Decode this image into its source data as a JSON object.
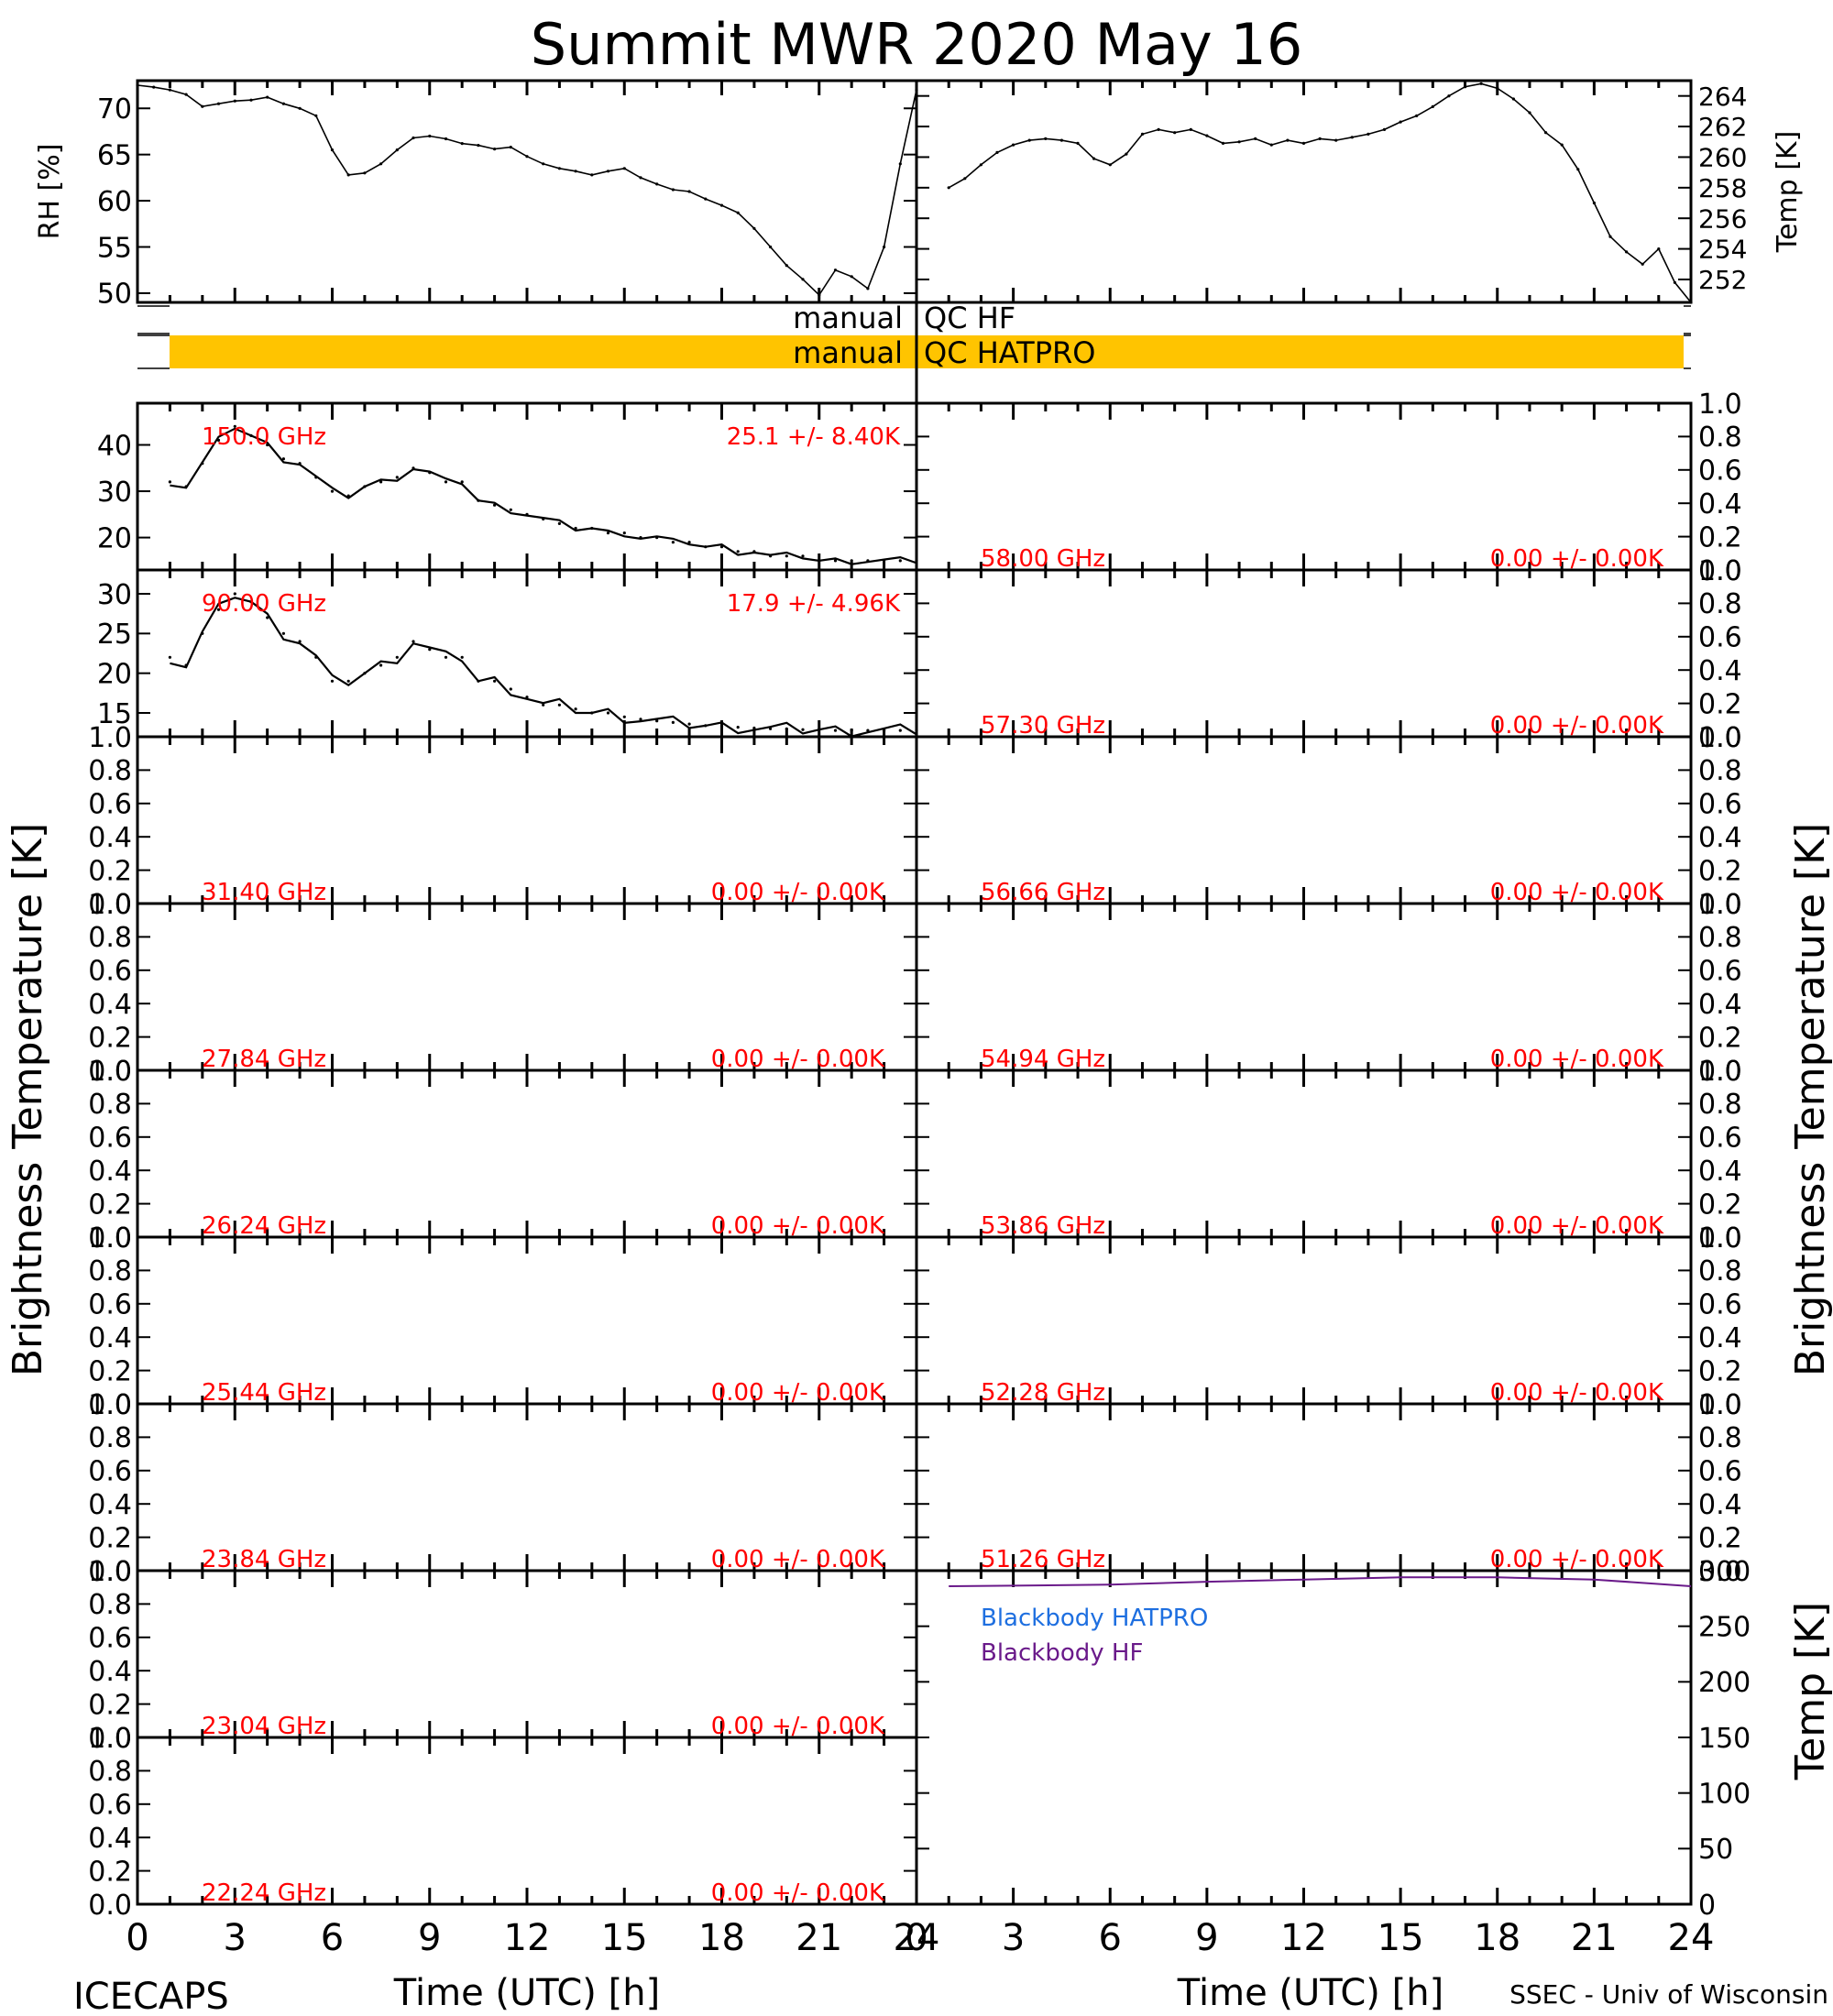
{
  "title": "Summit MWR 2020 May 16",
  "footer": {
    "left": "ICECAPS",
    "right": "SSEC - Univ of Wisconsin"
  },
  "colors": {
    "trace": "#000000",
    "label": "#ff0000",
    "qc_fill": "#ffc400",
    "bb_hatpro": "#1e6fe0",
    "bb_hf": "#6a1a8a"
  },
  "chart_data": [
    {
      "type": "line",
      "id": "rh",
      "ylabel": "RH [%]",
      "ylim": [
        49,
        73
      ],
      "yticks": [
        50,
        55,
        60,
        65,
        70
      ],
      "xlim": [
        0,
        24
      ],
      "x": [
        0.0,
        0.5,
        1.0,
        1.5,
        2.0,
        2.5,
        3.0,
        3.5,
        4.0,
        4.5,
        5.0,
        5.5,
        6.0,
        6.5,
        7.0,
        7.5,
        8.0,
        8.5,
        9.0,
        9.5,
        10.0,
        10.5,
        11.0,
        11.5,
        12.0,
        12.5,
        13.0,
        13.5,
        14.0,
        14.5,
        15.0,
        15.5,
        16.0,
        16.5,
        17.0,
        17.5,
        18.0,
        18.5,
        19.0,
        19.5,
        20.0,
        20.5,
        21.0,
        21.5,
        22.0,
        22.5,
        23.0,
        23.5,
        24.0
      ],
      "values": [
        72.5,
        72.3,
        72.0,
        71.5,
        70.2,
        70.5,
        70.8,
        70.9,
        71.2,
        70.5,
        70.0,
        69.2,
        65.5,
        62.8,
        63.0,
        64.0,
        65.5,
        66.8,
        67.0,
        66.7,
        66.2,
        66.0,
        65.6,
        65.8,
        64.8,
        64.0,
        63.5,
        63.2,
        62.8,
        63.2,
        63.5,
        62.5,
        61.8,
        61.2,
        61.0,
        60.2,
        59.5,
        58.7,
        57.0,
        55.0,
        53.0,
        51.5,
        49.8,
        52.5,
        51.8,
        50.5,
        55.0,
        64.0,
        72.0
      ]
    },
    {
      "type": "line",
      "id": "temp",
      "ylabel": "Temp [K]",
      "ylim": [
        250.5,
        265
      ],
      "yticks": [
        252,
        254,
        256,
        258,
        260,
        262,
        264
      ],
      "xlim": [
        0,
        24
      ],
      "x": [
        1.0,
        1.5,
        2.0,
        2.5,
        3.0,
        3.5,
        4.0,
        4.5,
        5.0,
        5.5,
        6.0,
        6.5,
        7.0,
        7.5,
        8.0,
        8.5,
        9.0,
        9.5,
        10.0,
        10.5,
        11.0,
        11.5,
        12.0,
        12.5,
        13.0,
        13.5,
        14.0,
        14.5,
        15.0,
        15.5,
        16.0,
        16.5,
        17.0,
        17.5,
        18.0,
        18.5,
        19.0,
        19.5,
        20.0,
        20.5,
        21.0,
        21.5,
        22.0,
        22.5,
        23.0,
        23.5,
        24.0
      ],
      "values": [
        258.0,
        258.6,
        259.5,
        260.3,
        260.8,
        261.1,
        261.2,
        261.1,
        260.9,
        259.9,
        259.5,
        260.2,
        261.5,
        261.8,
        261.6,
        261.8,
        261.4,
        260.9,
        261.0,
        261.2,
        260.8,
        261.1,
        260.9,
        261.2,
        261.1,
        261.3,
        261.5,
        261.8,
        262.3,
        262.7,
        263.3,
        264.0,
        264.6,
        264.8,
        264.5,
        263.8,
        262.9,
        261.6,
        260.8,
        259.2,
        257.0,
        254.8,
        253.8,
        253.0,
        254.0,
        251.8,
        250.5
      ]
    },
    {
      "type": "line",
      "id": "tb-150",
      "freq_label": "150.0 GHz",
      "stat_label": "25.1 +/-  8.40K",
      "ylim": [
        13,
        49
      ],
      "yticks": [
        20,
        30,
        40
      ],
      "xlim": [
        0,
        24
      ],
      "x": [
        1.0,
        1.5,
        2.0,
        2.5,
        3.0,
        3.5,
        4.0,
        4.5,
        5.0,
        5.5,
        6.0,
        6.5,
        7.0,
        7.5,
        8.0,
        8.5,
        9.0,
        9.5,
        10.0,
        10.5,
        11.0,
        11.5,
        12.0,
        12.5,
        13.0,
        13.5,
        14.0,
        14.5,
        15.0,
        15.5,
        16.0,
        16.5,
        17.0,
        17.5,
        18.0,
        18.5,
        19.0,
        19.5,
        20.0,
        20.5,
        21.0,
        21.5,
        22.0,
        22.5,
        23.0,
        23.5,
        24.0
      ],
      "values": [
        32,
        31,
        36,
        41,
        44,
        42,
        40,
        37,
        36,
        33,
        30,
        29,
        31,
        32,
        33,
        35,
        34,
        32,
        32,
        28,
        27,
        26,
        25,
        24,
        23,
        22,
        22,
        21,
        21,
        20,
        20,
        19,
        19,
        18,
        18,
        17,
        17,
        16,
        16,
        16,
        15,
        15,
        15,
        15,
        15,
        15,
        15
      ]
    },
    {
      "type": "line",
      "id": "tb-90",
      "freq_label": "90.00 GHz",
      "stat_label": "17.9 +/-  4.96K",
      "ylim": [
        12,
        33
      ],
      "yticks": [
        15,
        20,
        25,
        30
      ],
      "xlim": [
        0,
        24
      ],
      "x": [
        1.0,
        1.5,
        2.0,
        2.5,
        3.0,
        3.5,
        4.0,
        4.5,
        5.0,
        5.5,
        6.0,
        6.5,
        7.0,
        7.5,
        8.0,
        8.5,
        9.0,
        9.5,
        10.0,
        10.5,
        11.0,
        11.5,
        12.0,
        12.5,
        13.0,
        13.5,
        14.0,
        14.5,
        15.0,
        15.5,
        16.0,
        16.5,
        17.0,
        17.5,
        18.0,
        18.5,
        19.0,
        19.5,
        20.0,
        20.5,
        21.0,
        21.5,
        22.0,
        22.5,
        23.0,
        23.5,
        24.0
      ],
      "values": [
        22,
        21,
        25,
        28,
        30,
        29,
        27,
        25,
        24,
        22,
        19,
        19,
        20,
        21,
        22,
        24,
        23,
        22,
        22,
        19,
        19,
        18,
        17,
        16,
        16,
        15.5,
        15,
        15,
        14.5,
        14.2,
        14,
        13.8,
        13.6,
        13.4,
        13.3,
        13.2,
        13.1,
        13,
        13,
        12.9,
        12.9,
        12.8,
        12.8,
        12.8,
        12.8,
        12.8,
        12.8
      ]
    }
  ],
  "empty_channels": {
    "yticks": [
      "0.0",
      "0.2",
      "0.4",
      "0.6",
      "0.8",
      "1.0"
    ],
    "left": [
      {
        "freq": "31.40 GHz",
        "stat": "0.00 +/-  0.00K"
      },
      {
        "freq": "27.84 GHz",
        "stat": "0.00 +/-  0.00K"
      },
      {
        "freq": "26.24 GHz",
        "stat": "0.00 +/-  0.00K"
      },
      {
        "freq": "25.44 GHz",
        "stat": "0.00 +/-  0.00K"
      },
      {
        "freq": "23.84 GHz",
        "stat": "0.00 +/-  0.00K"
      },
      {
        "freq": "23.04 GHz",
        "stat": "0.00 +/-  0.00K"
      },
      {
        "freq": "22.24 GHz",
        "stat": "0.00 +/-  0.00K"
      }
    ],
    "right": [
      {
        "freq": "58.00 GHz",
        "stat": "0.00 +/-  0.00K"
      },
      {
        "freq": "57.30 GHz",
        "stat": "0.00 +/-  0.00K"
      },
      {
        "freq": "56.66 GHz",
        "stat": "0.00 +/-  0.00K"
      },
      {
        "freq": "54.94 GHz",
        "stat": "0.00 +/-  0.00K"
      },
      {
        "freq": "53.86 GHz",
        "stat": "0.00 +/-  0.00K"
      },
      {
        "freq": "52.28 GHz",
        "stat": "0.00 +/-  0.00K"
      },
      {
        "freq": "51.26 GHz",
        "stat": "0.00 +/-  0.00K"
      }
    ]
  },
  "blackbody": {
    "ylabel": "Temp [K]",
    "ylim": [
      0,
      300
    ],
    "yticks": [
      0,
      50,
      100,
      150,
      200,
      250,
      300
    ],
    "legend": [
      "Blackbody HATPRO",
      "Blackbody HF"
    ],
    "hf_x": [
      1,
      3,
      6,
      9,
      12,
      15,
      18,
      21,
      24
    ],
    "hf_values": [
      286,
      286.5,
      287.5,
      290,
      292,
      294,
      294,
      292,
      286
    ]
  },
  "qc": {
    "rows": [
      {
        "left": "manual",
        "right": "QC HF",
        "filled": false
      },
      {
        "left": "manual",
        "right": "QC HATPRO",
        "filled": true,
        "x_start": 1,
        "x_end": 24
      }
    ]
  },
  "axes": {
    "left_ylabel": "Brightness Temperature [K]",
    "right_ylabel": "Brightness Temperature [K]",
    "xlabel": "Time (UTC) [h]",
    "xticks": [
      "0",
      "3",
      "6",
      "9",
      "12",
      "15",
      "18",
      "21",
      "24"
    ]
  }
}
